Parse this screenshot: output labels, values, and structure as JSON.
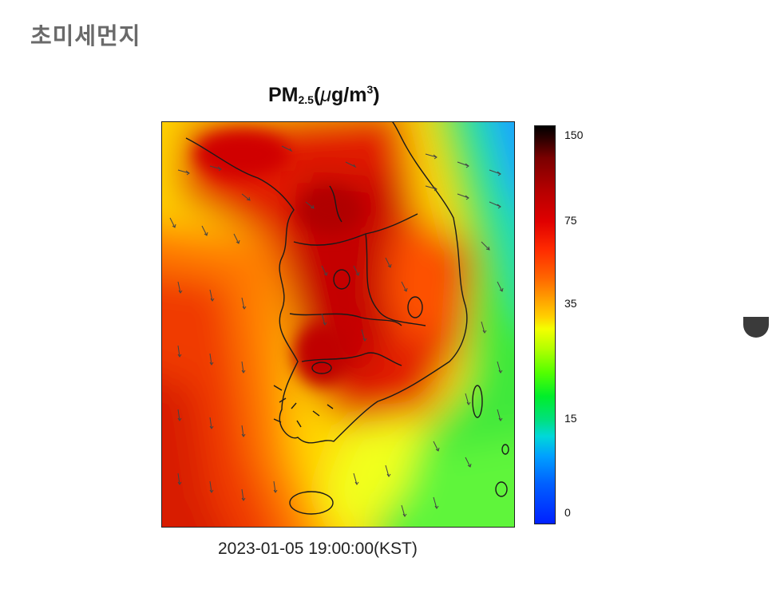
{
  "page": {
    "heading": "초미세먼지"
  },
  "map": {
    "title_main": "PM",
    "title_sub": "2.5",
    "title_open": "(",
    "title_mu": "μ",
    "title_unit": "g/m",
    "title_sup": "3",
    "title_close": ")",
    "timestamp": "2023-01-05 19:00:00(KST)",
    "region": "Korean Peninsula",
    "wind_vectors": "shown",
    "colorbar": {
      "ticks": [
        "150",
        "75",
        "35",
        "15",
        "0"
      ],
      "colors": [
        "#000000",
        "#b40000",
        "#ff2a00",
        "#ff9a00",
        "#f4ff00",
        "#54ff00",
        "#00d8d8",
        "#0020ff"
      ]
    }
  },
  "icons": {
    "side_control": "half-circle-icon"
  }
}
